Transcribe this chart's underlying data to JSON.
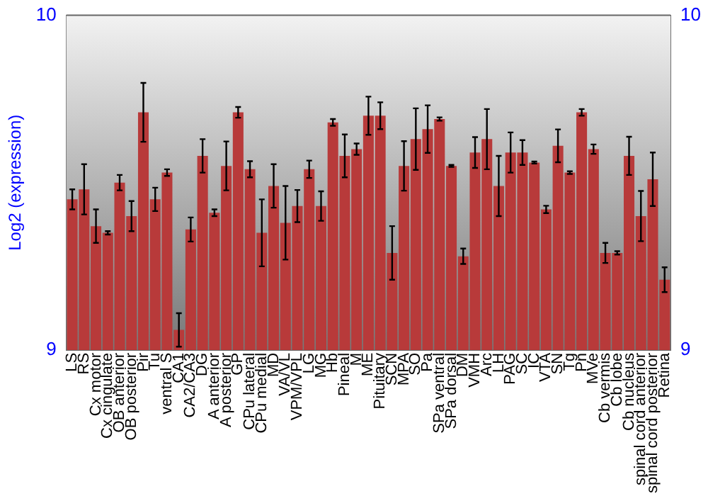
{
  "chart_data": {
    "type": "bar",
    "ylabel": "Log2 (expression)",
    "categories": [
      "LS",
      "RS",
      "Cx motor",
      "Cx cingulate",
      "OB anterior",
      "OB posterior",
      "Pir",
      "Tu",
      "ventral S",
      "CA1",
      "CA2/CA3",
      "DG",
      "A anterior",
      "A posterior",
      "GP",
      "CPu lateral",
      "CPu medial",
      "MD",
      "VA/VL",
      "VPM/VPL",
      "LG",
      "MG",
      "Hb",
      "Pineal",
      "M",
      "ME",
      "Pituitary",
      "SCN",
      "MPA",
      "SO",
      "Pa",
      "SPa ventral",
      "SPa dorsal",
      "DM",
      "VMH",
      "Arc",
      "LH",
      "PAG",
      "SC",
      "IC",
      "VTA",
      "SN",
      "Tg",
      "Pn",
      "MVe",
      "Cb vermis",
      "Cb lobe",
      "Cb nucleus",
      "spinal cord anterior",
      "spinal cord posterior",
      "Retina"
    ],
    "series": [
      {
        "color": "#b83a3a",
        "values": [
          9.45,
          9.48,
          9.37,
          9.35,
          9.5,
          9.4,
          9.71,
          9.45,
          9.53,
          9.06,
          9.36,
          9.58,
          9.41,
          9.55,
          9.71,
          9.54,
          9.35,
          9.49,
          9.38,
          9.43,
          9.54,
          9.43,
          9.68,
          9.58,
          9.6,
          9.7,
          9.7,
          9.29,
          9.55,
          9.63,
          9.66,
          9.69,
          9.55,
          9.28,
          9.59,
          9.63,
          9.49,
          9.59,
          9.59,
          9.56,
          9.42,
          9.61,
          9.53,
          9.71,
          9.6,
          9.29,
          9.29,
          9.58,
          9.4,
          9.51,
          9.21
        ],
        "errors": [
          0.03,
          0.075,
          0.05,
          0.005,
          0.023,
          0.045,
          0.088,
          0.035,
          0.01,
          0.05,
          0.036,
          0.05,
          0.01,
          0.073,
          0.016,
          0.024,
          0.1,
          0.065,
          0.11,
          0.048,
          0.026,
          0.044,
          0.01,
          0.064,
          0.017,
          0.057,
          0.04,
          0.08,
          0.074,
          0.092,
          0.071,
          0.005,
          0.003,
          0.023,
          0.046,
          0.09,
          0.09,
          0.06,
          0.037,
          0.003,
          0.011,
          0.049,
          0.004,
          0.01,
          0.014,
          0.03,
          0.005,
          0.057,
          0.075,
          0.08,
          0.037
        ]
      }
    ],
    "ylim": [
      9,
      10
    ],
    "yticks": [
      9,
      10
    ],
    "y2lim": [
      9,
      10
    ],
    "y2ticks": [
      9,
      10
    ],
    "grid": false,
    "legend": false
  }
}
